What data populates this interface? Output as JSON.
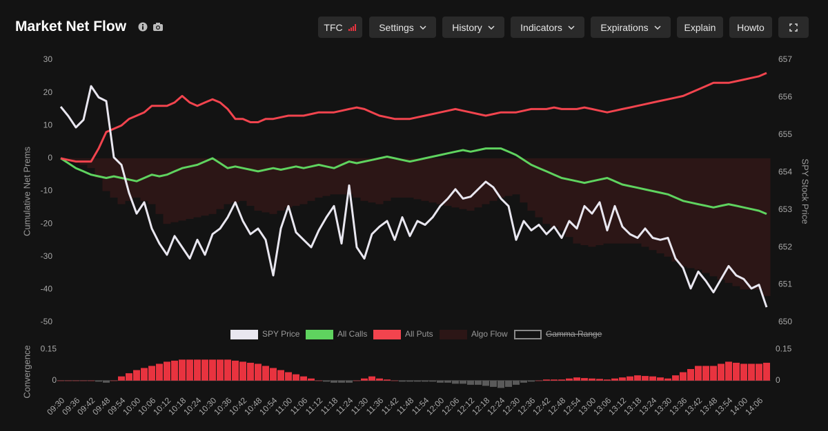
{
  "header": {
    "title": "Market Net Flow",
    "buttons": [
      "TFC",
      "Settings",
      "History",
      "Indicators",
      "Expirations",
      "Explain",
      "Howto"
    ]
  },
  "chart_data": [
    {
      "type": "line",
      "ylabel": "Cumulative Net Prems",
      "y2label": "SPY Stock Price",
      "categories": [
        "09:30",
        null,
        "09:36",
        null,
        "09:42",
        null,
        "09:48",
        null,
        "09:54",
        null,
        "10:00",
        null,
        "10:06",
        null,
        "10:12",
        null,
        "10:18",
        null,
        "10:24",
        null,
        "10:30",
        null,
        "10:36",
        null,
        "10:42",
        null,
        "10:48",
        null,
        "10:54",
        null,
        "11:00",
        null,
        "11:06",
        null,
        "11:12",
        null,
        "11:18",
        null,
        "11:24",
        null,
        "11:30",
        null,
        "11:36",
        null,
        "11:42",
        null,
        "11:48",
        null,
        "11:54",
        null,
        "12:00",
        null,
        "12:06",
        null,
        "12:12",
        null,
        "12:18",
        null,
        "12:24",
        null,
        "12:30",
        null,
        "12:36",
        null,
        "12:42",
        null,
        "12:48",
        null,
        "12:54",
        null,
        "13:00",
        null,
        "13:06",
        null,
        "13:12",
        null,
        "13:18",
        null,
        "13:24",
        null,
        "13:30",
        null,
        "13:36",
        null,
        "13:42",
        null,
        "13:48",
        null,
        "13:54",
        null,
        "14:00",
        null,
        "14:06",
        null
      ],
      "ylim": [
        -50,
        30
      ],
      "yticks": [
        30,
        20,
        10,
        0,
        -10,
        -20,
        -30,
        -40,
        -50
      ],
      "y2lim": [
        650,
        657
      ],
      "y2ticks": [
        657,
        656,
        655,
        654,
        653,
        652,
        651,
        650
      ],
      "grid": false,
      "series": [
        {
          "name": "SPY Price",
          "color": "#e9e7f0",
          "axis": "y2",
          "type": "line",
          "values": [
            655.75,
            655.5,
            655.2,
            655.4,
            656.3,
            656.0,
            655.9,
            654.4,
            654.2,
            653.45,
            652.9,
            653.2,
            652.5,
            652.1,
            651.8,
            652.3,
            652.0,
            651.7,
            652.2,
            651.8,
            652.35,
            652.5,
            652.8,
            653.2,
            652.7,
            652.35,
            652.5,
            652.2,
            651.25,
            652.5,
            653.1,
            652.4,
            652.2,
            652.0,
            652.45,
            652.8,
            653.1,
            652.1,
            653.65,
            652.0,
            651.7,
            652.35,
            652.55,
            652.7,
            652.2,
            652.8,
            652.3,
            652.7,
            652.6,
            652.8,
            653.1,
            653.3,
            653.55,
            653.3,
            653.35,
            653.55,
            653.75,
            653.6,
            653.3,
            653.1,
            652.2,
            652.7,
            652.45,
            652.6,
            652.35,
            652.55,
            652.25,
            652.7,
            652.5,
            653.1,
            652.9,
            653.2,
            652.45,
            653.1,
            652.55,
            652.35,
            652.25,
            652.5,
            652.25,
            652.2,
            652.25,
            651.7,
            651.45,
            650.9,
            651.35,
            651.1,
            650.8,
            651.15,
            651.5,
            651.25,
            651.15,
            650.9,
            651.0,
            650.4
          ]
        },
        {
          "name": "All Calls",
          "color": "#5fd35f",
          "type": "line",
          "values": [
            0,
            -1.5,
            -3,
            -4,
            -5,
            -5.5,
            -6,
            -5.5,
            -6,
            -6.5,
            -7,
            -6,
            -5,
            -5.5,
            -5,
            -4,
            -3,
            -2.5,
            -2,
            -1,
            0,
            -1.5,
            -3,
            -2.5,
            -3,
            -3.5,
            -4,
            -3.5,
            -3,
            -3.5,
            -3,
            -2.5,
            -3,
            -2.5,
            -2,
            -2.5,
            -3,
            -2,
            -1,
            -1.5,
            -1,
            -0.5,
            0,
            0.5,
            0,
            -0.5,
            -1,
            -0.5,
            0,
            0.5,
            1,
            1.5,
            2,
            2.5,
            2,
            2.5,
            3,
            3,
            3,
            2,
            1,
            -0.5,
            -2,
            -3,
            -4,
            -5,
            -6,
            -6.5,
            -7,
            -7.5,
            -7,
            -6.5,
            -6,
            -7,
            -8,
            -8.5,
            -9,
            -9.5,
            -10,
            -10.5,
            -11,
            -12,
            -13,
            -13.5,
            -14,
            -14.5,
            -15,
            -14.5,
            -14,
            -14.5,
            -15,
            -15.5,
            -16,
            -17
          ]
        },
        {
          "name": "All Puts",
          "color": "#f2444e",
          "type": "line",
          "values": [
            0,
            -0.5,
            -1,
            -1,
            -1,
            3,
            8,
            9,
            10,
            12,
            13,
            14,
            16,
            16,
            16,
            17,
            19,
            17,
            16,
            17,
            18,
            17,
            15,
            12,
            12,
            11,
            11,
            12,
            12,
            12.5,
            13,
            13,
            13,
            13.5,
            14,
            14,
            14,
            14.5,
            15,
            15.5,
            15,
            14,
            13,
            12.5,
            12,
            12,
            12,
            12.5,
            13,
            13.5,
            14,
            14.5,
            15,
            14.5,
            14,
            13.5,
            13,
            13.5,
            14,
            14,
            14,
            14.5,
            15,
            15,
            15,
            15.5,
            15,
            15,
            15,
            15.5,
            15,
            14.5,
            14,
            14.5,
            15,
            15.5,
            16,
            16.5,
            17,
            17.5,
            18,
            18.5,
            19,
            20,
            21,
            22,
            23,
            23,
            23,
            23.5,
            24,
            24.5,
            25,
            26
          ]
        },
        {
          "name": "Algo Flow",
          "color": "#2c1616",
          "type": "bar",
          "values": [
            0,
            -0.5,
            -1,
            -2,
            -3,
            -6,
            -10,
            -12,
            -14,
            -13,
            -12,
            -13,
            -14,
            -17,
            -20,
            -19.5,
            -19,
            -18.5,
            -18,
            -17.5,
            -17,
            -15.5,
            -14,
            -13.5,
            -13,
            -14.5,
            -16,
            -16.5,
            -17,
            -16,
            -15,
            -14.5,
            -14,
            -13,
            -12,
            -11.5,
            -11,
            -11,
            -11,
            -12,
            -13,
            -13.5,
            -14,
            -13,
            -12,
            -12,
            -12,
            -12.5,
            -13,
            -13.5,
            -14,
            -14.5,
            -15,
            -15.5,
            -16,
            -15,
            -14,
            -13,
            -12,
            -11.5,
            -11,
            -13.5,
            -16,
            -18,
            -20,
            -21,
            -22,
            -24,
            -26,
            -26.5,
            -27,
            -26.5,
            -26,
            -26,
            -26,
            -26,
            -26,
            -27,
            -28,
            -29,
            -30,
            -31.5,
            -33,
            -33.5,
            -34,
            -35,
            -36,
            -37,
            -38,
            -39,
            -40,
            -40,
            -40,
            -42
          ]
        },
        {
          "name": "Gamma Range",
          "color": "#8a8a8a",
          "hidden": true
        }
      ]
    },
    {
      "type": "bar",
      "ylabel": "Convergence",
      "ylim": [
        -0.05,
        0.17
      ],
      "yticks": [
        0.15,
        0
      ],
      "y2lim": [
        -0.05,
        0.17
      ],
      "y2ticks": [
        0.15,
        0
      ],
      "color": "#e8333f",
      "negative_color": "#5a5a5a",
      "values": [
        0,
        0,
        0,
        0,
        0,
        -0.005,
        -0.01,
        0,
        0.02,
        0.035,
        0.05,
        0.06,
        0.07,
        0.08,
        0.09,
        0.095,
        0.1,
        0.1,
        0.1,
        0.1,
        0.1,
        0.1,
        0.1,
        0.095,
        0.09,
        0.085,
        0.08,
        0.07,
        0.06,
        0.05,
        0.04,
        0.03,
        0.02,
        0.01,
        0,
        -0.005,
        -0.01,
        -0.01,
        -0.01,
        0,
        0.01,
        0.02,
        0.01,
        0.005,
        0,
        -0.005,
        -0.005,
        -0.005,
        -0.005,
        -0.005,
        -0.01,
        -0.01,
        -0.015,
        -0.015,
        -0.02,
        -0.02,
        -0.025,
        -0.03,
        -0.035,
        -0.03,
        -0.02,
        -0.01,
        -0.005,
        0,
        0.005,
        0.005,
        0.005,
        0.01,
        0.015,
        0.012,
        0.01,
        0.008,
        0.005,
        0.01,
        0.015,
        0.02,
        0.025,
        0.022,
        0.02,
        0.015,
        0.01,
        0.025,
        0.04,
        0.055,
        0.07,
        0.07,
        0.07,
        0.08,
        0.09,
        0.085,
        0.08,
        0.08,
        0.08,
        0.085
      ]
    }
  ]
}
